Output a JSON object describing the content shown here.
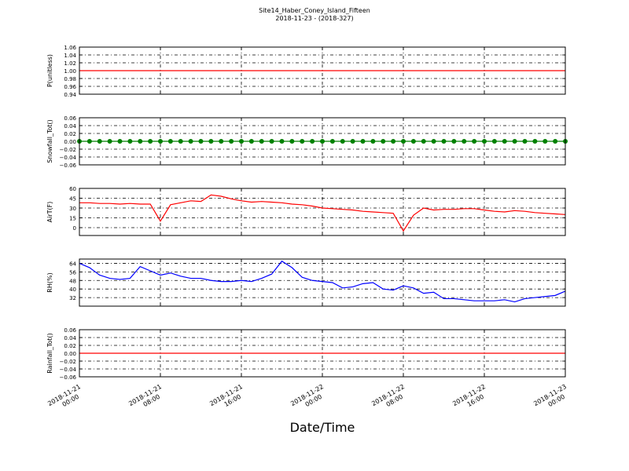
{
  "chart_data": [
    {
      "type": "line",
      "title": "Site14_Haber_Coney_Island_Fifteen",
      "subtitle": "2018-11-23 - (2018-327)",
      "ylabel": "P(unitless)",
      "color": "#ff0000",
      "x": [
        "2018-11-21 00:00",
        "2018-11-23 00:00"
      ],
      "values": [
        1,
        1
      ],
      "xlim": [
        "2018-11-21 00:00",
        "2018-11-23 00:00"
      ],
      "ylim": [
        0.94,
        1.06
      ],
      "yticks": [
        {
          "value": 0.94,
          "label": "0.94"
        },
        {
          "value": 0.96,
          "label": "0.96"
        },
        {
          "value": 0.98,
          "label": "0.98"
        },
        {
          "value": 1,
          "label": "1.00"
        },
        {
          "value": 1.02,
          "label": "1.02"
        },
        {
          "value": 1.04,
          "label": "1.04"
        },
        {
          "value": 1.06,
          "label": "1.06"
        }
      ],
      "grid": true
    },
    {
      "type": "line",
      "ylabel": "Snowfall_Tot()",
      "color": "#008000",
      "marker": "o",
      "x": [
        "2018-11-21 00:00",
        "2018-11-21 01:00",
        "2018-11-21 02:00",
        "2018-11-21 03:00",
        "2018-11-21 04:00",
        "2018-11-21 05:00",
        "2018-11-21 06:00",
        "2018-11-21 07:00",
        "2018-11-21 08:00",
        "2018-11-21 09:00",
        "2018-11-21 10:00",
        "2018-11-21 11:00",
        "2018-11-21 12:00",
        "2018-11-21 13:00",
        "2018-11-21 14:00",
        "2018-11-21 15:00",
        "2018-11-21 16:00",
        "2018-11-21 17:00",
        "2018-11-21 18:00",
        "2018-11-21 19:00",
        "2018-11-21 20:00",
        "2018-11-21 21:00",
        "2018-11-21 22:00",
        "2018-11-21 23:00",
        "2018-11-22 00:00",
        "2018-11-22 01:00",
        "2018-11-22 02:00",
        "2018-11-22 03:00",
        "2018-11-22 04:00",
        "2018-11-22 05:00",
        "2018-11-22 06:00",
        "2018-11-22 07:00",
        "2018-11-22 08:00",
        "2018-11-22 09:00",
        "2018-11-22 10:00",
        "2018-11-22 11:00",
        "2018-11-22 12:00",
        "2018-11-22 13:00",
        "2018-11-22 14:00",
        "2018-11-22 15:00",
        "2018-11-22 16:00",
        "2018-11-22 17:00",
        "2018-11-22 18:00",
        "2018-11-22 19:00",
        "2018-11-22 20:00",
        "2018-11-22 21:00",
        "2018-11-22 22:00",
        "2018-11-22 23:00",
        "2018-11-23 00:00"
      ],
      "values": [
        0,
        0,
        0,
        0,
        0,
        0,
        0,
        0,
        0,
        0,
        0,
        0,
        0,
        0,
        0,
        0,
        0,
        0,
        0,
        0,
        0,
        0,
        0,
        0,
        0,
        0,
        0,
        0,
        0,
        0,
        0,
        0,
        0,
        0,
        0,
        0,
        0,
        0,
        0,
        0,
        0,
        0,
        0,
        0,
        0,
        0,
        0,
        0,
        0
      ],
      "xlim": [
        "2018-11-21 00:00",
        "2018-11-23 00:00"
      ],
      "ylim": [
        -0.06,
        0.06
      ],
      "yticks": [
        {
          "value": -0.06,
          "label": "−0.06"
        },
        {
          "value": -0.04,
          "label": "−0.04"
        },
        {
          "value": -0.02,
          "label": "−0.02"
        },
        {
          "value": 0,
          "label": "0.00"
        },
        {
          "value": 0.02,
          "label": "0.02"
        },
        {
          "value": 0.04,
          "label": "0.04"
        },
        {
          "value": 0.06,
          "label": "0.06"
        }
      ],
      "grid": true
    },
    {
      "type": "line",
      "ylabel": "AirT(F)",
      "color": "#ff0000",
      "x": [
        "2018-11-21 00:00",
        "2018-11-21 01:00",
        "2018-11-21 02:00",
        "2018-11-21 03:00",
        "2018-11-21 04:00",
        "2018-11-21 05:00",
        "2018-11-21 06:00",
        "2018-11-21 07:00",
        "2018-11-21 08:00",
        "2018-11-21 09:00",
        "2018-11-21 10:00",
        "2018-11-21 11:00",
        "2018-11-21 12:00",
        "2018-11-21 13:00",
        "2018-11-21 14:00",
        "2018-11-21 15:00",
        "2018-11-21 16:00",
        "2018-11-21 17:00",
        "2018-11-21 18:00",
        "2018-11-21 19:00",
        "2018-11-21 20:00",
        "2018-11-21 21:00",
        "2018-11-21 22:00",
        "2018-11-21 23:00",
        "2018-11-22 00:00",
        "2018-11-22 01:00",
        "2018-11-22 02:00",
        "2018-11-22 03:00",
        "2018-11-22 04:00",
        "2018-11-22 05:00",
        "2018-11-22 06:00",
        "2018-11-22 07:00",
        "2018-11-22 08:00",
        "2018-11-22 09:00",
        "2018-11-22 10:00",
        "2018-11-22 11:00",
        "2018-11-22 12:00",
        "2018-11-22 13:00",
        "2018-11-22 14:00",
        "2018-11-22 15:00",
        "2018-11-22 16:00",
        "2018-11-22 17:00",
        "2018-11-22 18:00",
        "2018-11-22 19:00",
        "2018-11-22 20:00",
        "2018-11-22 21:00",
        "2018-11-22 22:00",
        "2018-11-22 23:00",
        "2018-11-23 00:00"
      ],
      "values": [
        38,
        38,
        37,
        37,
        36,
        37,
        36,
        36,
        10,
        35,
        38,
        41,
        40,
        50,
        48,
        44,
        41,
        39,
        40,
        39,
        38,
        36,
        35,
        33,
        30,
        29,
        28,
        27,
        25,
        24,
        23,
        22,
        -5,
        19,
        30,
        27,
        28,
        28,
        29,
        29,
        27,
        25,
        24,
        26,
        25,
        23,
        22,
        21,
        20
      ],
      "xlim": [
        "2018-11-21 00:00",
        "2018-11-23 00:00"
      ],
      "ylim": [
        -12,
        60
      ],
      "yticks": [
        0,
        15,
        30,
        45,
        60
      ],
      "grid": true
    },
    {
      "type": "line",
      "ylabel": "RH(%)",
      "color": "#0000ff",
      "x": [
        "2018-11-21 00:00",
        "2018-11-21 01:00",
        "2018-11-21 02:00",
        "2018-11-21 03:00",
        "2018-11-21 04:00",
        "2018-11-21 05:00",
        "2018-11-21 06:00",
        "2018-11-21 07:00",
        "2018-11-21 08:00",
        "2018-11-21 09:00",
        "2018-11-21 10:00",
        "2018-11-21 11:00",
        "2018-11-21 12:00",
        "2018-11-21 13:00",
        "2018-11-21 14:00",
        "2018-11-21 15:00",
        "2018-11-21 16:00",
        "2018-11-21 17:00",
        "2018-11-21 18:00",
        "2018-11-21 19:00",
        "2018-11-21 20:00",
        "2018-11-21 21:00",
        "2018-11-21 22:00",
        "2018-11-21 23:00",
        "2018-11-22 00:00",
        "2018-11-22 01:00",
        "2018-11-22 02:00",
        "2018-11-22 03:00",
        "2018-11-22 04:00",
        "2018-11-22 05:00",
        "2018-11-22 06:00",
        "2018-11-22 07:00",
        "2018-11-22 08:00",
        "2018-11-22 09:00",
        "2018-11-22 10:00",
        "2018-11-22 11:00",
        "2018-11-22 12:00",
        "2018-11-22 13:00",
        "2018-11-22 14:00",
        "2018-11-22 15:00",
        "2018-11-22 16:00",
        "2018-11-22 17:00",
        "2018-11-22 18:00",
        "2018-11-22 19:00",
        "2018-11-22 20:00",
        "2018-11-22 21:00",
        "2018-11-22 22:00",
        "2018-11-22 23:00",
        "2018-11-23 00:00"
      ],
      "values": [
        64,
        60,
        53,
        50,
        49,
        50,
        61,
        57,
        53,
        55,
        52,
        50,
        50,
        48,
        47,
        47,
        48,
        47,
        50,
        54,
        66,
        60,
        51,
        48,
        47,
        46,
        41,
        42,
        45,
        46,
        40,
        39,
        43,
        41,
        36,
        37,
        31,
        31,
        30,
        29,
        29,
        29,
        30,
        28,
        31,
        32,
        33,
        34,
        38
      ],
      "xlim": [
        "2018-11-21 00:00",
        "2018-11-23 00:00"
      ],
      "ylim": [
        24,
        68
      ],
      "yticks": [
        32,
        40,
        48,
        56,
        64
      ],
      "grid": true
    },
    {
      "type": "line",
      "ylabel": "Rainfall_Tot()",
      "xlabel": "Date/Time",
      "color": "#ff0000",
      "x": [
        "2018-11-21 00:00",
        "2018-11-23 00:00"
      ],
      "values": [
        0,
        0
      ],
      "xlim": [
        "2018-11-21 00:00",
        "2018-11-23 00:00"
      ],
      "ylim": [
        -0.06,
        0.06
      ],
      "yticks": [
        {
          "value": -0.06,
          "label": "−0.06"
        },
        {
          "value": -0.04,
          "label": "−0.04"
        },
        {
          "value": -0.02,
          "label": "−0.02"
        },
        {
          "value": 0,
          "label": "0.00"
        },
        {
          "value": 0.02,
          "label": "0.02"
        },
        {
          "value": 0.04,
          "label": "0.04"
        },
        {
          "value": 0.06,
          "label": "0.06"
        }
      ],
      "xticks": [
        "2018-11-21 00:00",
        "2018-11-21 08:00",
        "2018-11-21 16:00",
        "2018-11-22 00:00",
        "2018-11-22 08:00",
        "2018-11-22 16:00",
        "2018-11-23 00:00"
      ],
      "grid": true
    }
  ]
}
